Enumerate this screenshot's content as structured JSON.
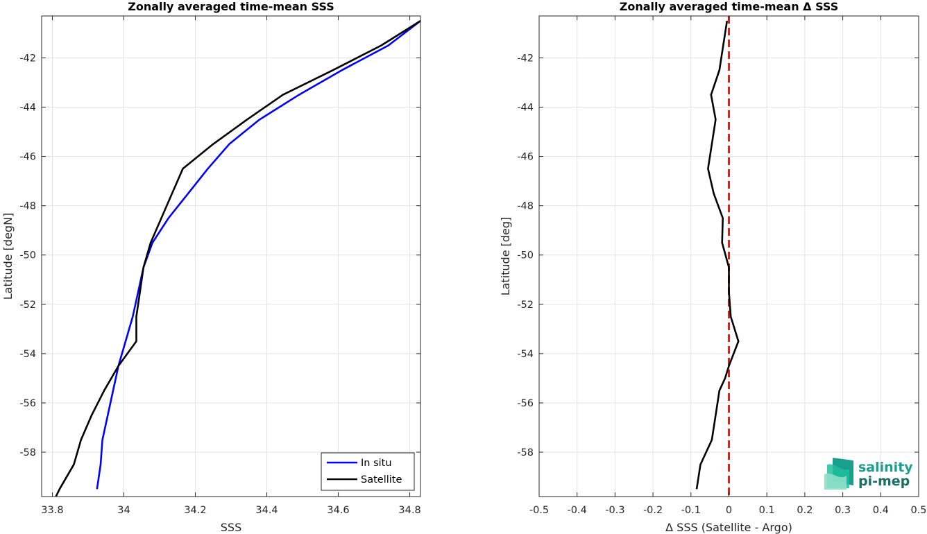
{
  "chart_data": [
    {
      "type": "line",
      "title": "Zonally averaged time-mean SSS",
      "xlabel": "SSS",
      "ylabel": "Latitude [degN]",
      "xlim": [
        33.77,
        34.83
      ],
      "ylim": [
        -59.8,
        -40.3
      ],
      "xticks": [
        33.8,
        34,
        34.2,
        34.4,
        34.6,
        34.8
      ],
      "xtick_labels": [
        "33.8",
        "34",
        "34.2",
        "34.4",
        "34.6",
        "34.8"
      ],
      "yticks": [
        -58,
        -56,
        -54,
        -52,
        -50,
        -48,
        -46,
        -44,
        -42
      ],
      "ytick_labels": [
        "-58",
        "-56",
        "-54",
        "-52",
        "-50",
        "-48",
        "-46",
        "-44",
        "-42"
      ],
      "grid": true,
      "legend": "bottom-right",
      "series": [
        {
          "name": "In situ",
          "color": "#0000ff",
          "x": [
            33.925,
            33.935,
            33.94,
            33.955,
            33.97,
            33.985,
            34.005,
            34.025,
            34.04,
            34.055,
            34.08,
            34.125,
            34.18,
            34.235,
            34.295,
            34.38,
            34.49,
            34.61,
            34.74,
            34.83
          ],
          "y": [
            -59.5,
            -58.5,
            -57.5,
            -56.5,
            -55.5,
            -54.5,
            -53.5,
            -52.5,
            -51.5,
            -50.5,
            -49.5,
            -48.5,
            -47.5,
            -46.5,
            -45.5,
            -44.5,
            -43.5,
            -42.5,
            -41.5,
            -40.5
          ]
        },
        {
          "name": "Satellite",
          "color": "#000000",
          "x": [
            33.81,
            33.82,
            33.86,
            33.88,
            33.91,
            33.945,
            33.985,
            34.035,
            34.035,
            34.045,
            34.055,
            34.075,
            34.105,
            34.135,
            34.165,
            34.25,
            34.345,
            34.445,
            34.585,
            34.72,
            34.83
          ],
          "y": [
            -59.8,
            -59.5,
            -58.5,
            -57.5,
            -56.5,
            -55.5,
            -54.5,
            -53.5,
            -52.5,
            -51.5,
            -50.5,
            -49.5,
            -48.5,
            -47.5,
            -46.5,
            -45.5,
            -44.5,
            -43.5,
            -42.5,
            -41.5,
            -40.5
          ]
        }
      ]
    },
    {
      "type": "line",
      "title": "Zonally averaged time-mean Δ SSS",
      "xlabel": "Δ SSS (Satellite - Argo)",
      "ylabel": "Latitude [deg]",
      "xlim": [
        -0.5,
        0.5
      ],
      "ylim": [
        -59.8,
        -40.3
      ],
      "xticks": [
        -0.5,
        -0.4,
        -0.3,
        -0.2,
        -0.1,
        0,
        0.1,
        0.2,
        0.3,
        0.4,
        0.5
      ],
      "xtick_labels": [
        "-0.5",
        "-0.4",
        "-0.3",
        "-0.2",
        "-0.1",
        "0",
        "0.1",
        "0.2",
        "0.3",
        "0.4",
        "0.5"
      ],
      "yticks": [
        -58,
        -56,
        -54,
        -52,
        -50,
        -48,
        -46,
        -44,
        -42
      ],
      "ytick_labels": [
        "-58",
        "-56",
        "-54",
        "-52",
        "-50",
        "-48",
        "-46",
        "-44",
        "-42"
      ],
      "grid": true,
      "reference_line": {
        "x": 0,
        "color": "#e0201b",
        "style": "dashed"
      },
      "series": [
        {
          "color": "#000000",
          "x": [
            -0.085,
            -0.075,
            -0.045,
            -0.035,
            -0.025,
            -0.01,
            0.0,
            0.025,
            0.005,
            0.0,
            0.0,
            0.0,
            -0.018,
            -0.016,
            -0.04,
            -0.055,
            -0.045,
            -0.035,
            -0.047,
            -0.025,
            -0.015,
            -0.005
          ],
          "y": [
            -59.5,
            -58.5,
            -57.5,
            -56.5,
            -55.5,
            -55.0,
            -54.5,
            -53.5,
            -52.5,
            -51.5,
            -51.0,
            -50.5,
            -49.5,
            -48.5,
            -47.5,
            -46.5,
            -45.5,
            -44.5,
            -43.5,
            -42.5,
            -41.5,
            -40.5
          ]
        }
      ]
    }
  ],
  "logo": {
    "line1": "salinity",
    "line2": "pi-mep",
    "colors": [
      "#1a9f8e",
      "#1fbf9b",
      "#8fdfc8"
    ]
  }
}
